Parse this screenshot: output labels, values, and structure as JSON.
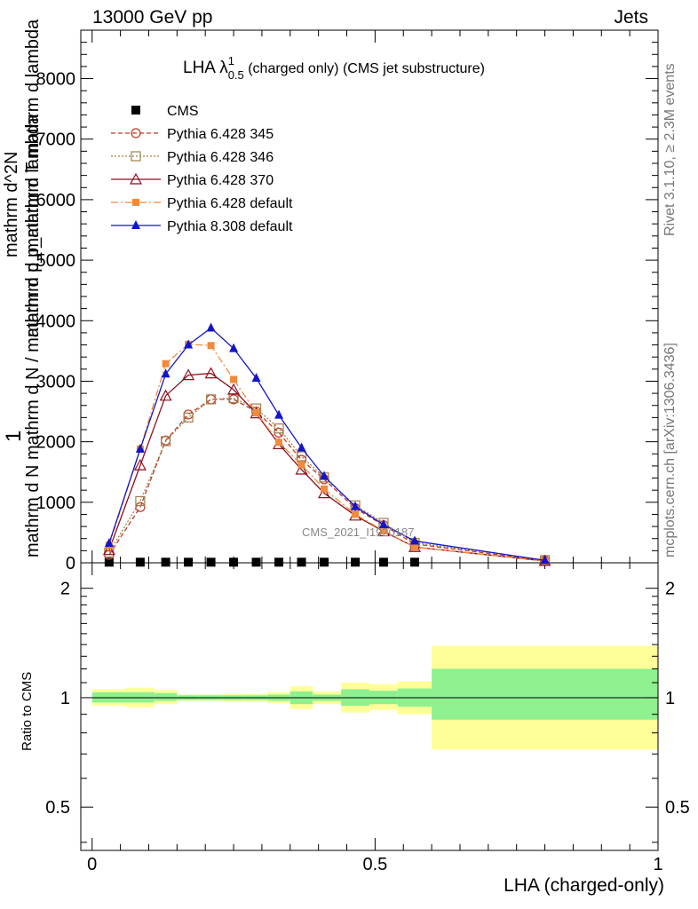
{
  "header": {
    "left": "13000 GeV pp",
    "right": "Jets"
  },
  "side_labels": {
    "rivet": "Rivet 3.1.10, ≥ 2.3M events",
    "mcplots": "mcplots.cern.ch [arXiv:1306.3436]"
  },
  "watermark": "CMS_2021_I1920187",
  "colors": {
    "cms": "#000000",
    "p345": "#c0392b",
    "p346": "#a0804a",
    "p370": "#8b0f1e",
    "p6def": "#f28a3c",
    "p8def": "#1515c8",
    "band_inner": "#8ef08e",
    "band_outer": "#ffff99"
  },
  "chart_data": [
    {
      "type": "line",
      "title": "LHA λ",
      "title_sup": "1",
      "title_sub": "0.5",
      "title_rest": " (charged only) (CMS jet substructure)",
      "xlabel": "LHA (charged-only)",
      "ylabel_num": "1",
      "ylabel_denom": "mathrm d N  mathrm d N / mathrm d p_mathrm d lambda",
      "ylabel_top": "mathrm d^2N",
      "ylabel_frac": "mathrm d p_mathrm T mathrm d lambda",
      "xlim": [
        -0.02,
        1.0
      ],
      "ylim": [
        0,
        8800
      ],
      "yticks": [
        0,
        1000,
        2000,
        3000,
        4000,
        5000,
        6000,
        7000,
        8000
      ],
      "ytick_labels": [
        "0",
        "1000",
        "2000",
        "3000",
        "4000",
        "5000",
        "6000",
        "7000",
        "8000"
      ],
      "legend_position": "top-left",
      "x": [
        0.03,
        0.085,
        0.13,
        0.17,
        0.21,
        0.25,
        0.29,
        0.33,
        0.37,
        0.41,
        0.465,
        0.515,
        0.57,
        0.8
      ],
      "series": [
        {
          "name": "CMS",
          "marker": "square-filled",
          "values": [
            10,
            10,
            10,
            10,
            10,
            10,
            10,
            10,
            10,
            10,
            10,
            10,
            10,
            null
          ]
        },
        {
          "name": "Pythia 6.428 345",
          "marker": "circle-open",
          "dash": "5,3",
          "values": [
            130,
            920,
            2020,
            2450,
            2700,
            2700,
            2500,
            2150,
            1700,
            1380,
            900,
            620,
            310,
            35
          ]
        },
        {
          "name": "Pythia 6.428 346",
          "marker": "square-open",
          "dash": "2,2",
          "values": [
            170,
            1020,
            2010,
            2400,
            2700,
            2720,
            2550,
            2220,
            1760,
            1410,
            950,
            660,
            330,
            45
          ]
        },
        {
          "name": "Pythia 6.428 370",
          "marker": "triangle-open",
          "dash": "",
          "values": [
            210,
            1610,
            2760,
            3100,
            3130,
            2860,
            2470,
            1960,
            1540,
            1150,
            780,
            520,
            260,
            30
          ]
        },
        {
          "name": "Pythia 6.428 default",
          "marker": "square-filled-small",
          "dash": "8,3,2,3",
          "values": [
            290,
            1880,
            3290,
            3610,
            3590,
            3030,
            2480,
            1990,
            1620,
            1220,
            800,
            530,
            260,
            30
          ]
        },
        {
          "name": "Pythia 8.308 default",
          "marker": "triangle-filled",
          "dash": "",
          "values": [
            320,
            1880,
            3120,
            3600,
            3880,
            3540,
            3050,
            2440,
            1900,
            1430,
            930,
            630,
            360,
            40
          ]
        }
      ]
    },
    {
      "type": "area",
      "ylabel": "Ratio to CMS",
      "xlim": [
        -0.02,
        1.0
      ],
      "ylim": [
        0.38,
        2.35
      ],
      "log_scale_y": true,
      "yticks": [
        0.5,
        1,
        2
      ],
      "ytick_labels": [
        "0.5",
        "1",
        "2"
      ],
      "xticks": [
        0,
        0.5,
        1
      ],
      "xtick_labels": [
        "0",
        "0.5",
        "1"
      ],
      "reference_line": 1,
      "bins": [
        {
          "x0": 0.0,
          "x1": 0.06,
          "inner": [
            0.97,
            1.035
          ],
          "outer": [
            0.95,
            1.055
          ]
        },
        {
          "x0": 0.06,
          "x1": 0.11,
          "inner": [
            0.97,
            1.035
          ],
          "outer": [
            0.94,
            1.065
          ]
        },
        {
          "x0": 0.11,
          "x1": 0.15,
          "inner": [
            0.98,
            1.03
          ],
          "outer": [
            0.96,
            1.05
          ]
        },
        {
          "x0": 0.15,
          "x1": 0.19,
          "inner": [
            0.985,
            1.015
          ],
          "outer": [
            0.98,
            1.02
          ]
        },
        {
          "x0": 0.19,
          "x1": 0.23,
          "inner": [
            0.985,
            1.015
          ],
          "outer": [
            0.98,
            1.02
          ]
        },
        {
          "x0": 0.23,
          "x1": 0.27,
          "inner": [
            0.985,
            1.015
          ],
          "outer": [
            0.975,
            1.025
          ]
        },
        {
          "x0": 0.27,
          "x1": 0.31,
          "inner": [
            0.985,
            1.015
          ],
          "outer": [
            0.975,
            1.025
          ]
        },
        {
          "x0": 0.31,
          "x1": 0.35,
          "inner": [
            0.98,
            1.02
          ],
          "outer": [
            0.965,
            1.035
          ]
        },
        {
          "x0": 0.35,
          "x1": 0.39,
          "inner": [
            0.96,
            1.04
          ],
          "outer": [
            0.93,
            1.075
          ]
        },
        {
          "x0": 0.39,
          "x1": 0.44,
          "inner": [
            0.98,
            1.02
          ],
          "outer": [
            0.96,
            1.04
          ]
        },
        {
          "x0": 0.44,
          "x1": 0.49,
          "inner": [
            0.95,
            1.055
          ],
          "outer": [
            0.91,
            1.1
          ]
        },
        {
          "x0": 0.49,
          "x1": 0.54,
          "inner": [
            0.96,
            1.045
          ],
          "outer": [
            0.925,
            1.09
          ]
        },
        {
          "x0": 0.54,
          "x1": 0.6,
          "inner": [
            0.945,
            1.06
          ],
          "outer": [
            0.9,
            1.11
          ]
        },
        {
          "x0": 0.6,
          "x1": 1.0,
          "inner": [
            0.87,
            1.2
          ],
          "outer": [
            0.72,
            1.39
          ]
        }
      ]
    }
  ]
}
